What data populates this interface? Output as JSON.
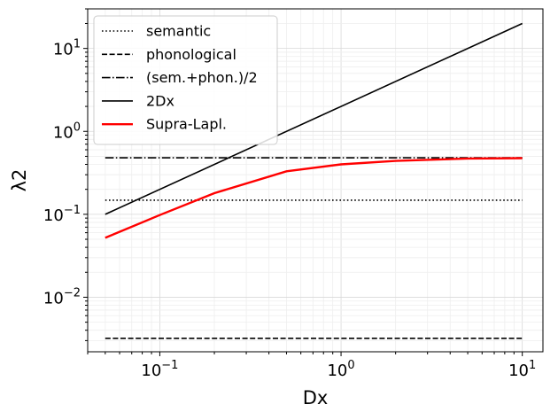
{
  "chart_data": {
    "type": "line",
    "xlabel": "Dx",
    "ylabel": "λ2",
    "xscale": "log",
    "yscale": "log",
    "xlim": [
      0.04,
      13
    ],
    "ylim": [
      0.0022,
      30
    ],
    "grid": "both-major-minor",
    "legend_placement": "upper-left",
    "x_ticks": [
      {
        "value": 0.1,
        "base": "10",
        "exp": "−1"
      },
      {
        "value": 1,
        "base": "10",
        "exp": "0"
      },
      {
        "value": 10,
        "base": "10",
        "exp": "1"
      }
    ],
    "y_ticks": [
      {
        "value": 0.01,
        "base": "10",
        "exp": "−2"
      },
      {
        "value": 0.1,
        "base": "10",
        "exp": "−1"
      },
      {
        "value": 1,
        "base": "10",
        "exp": "0"
      },
      {
        "value": 10,
        "base": "10",
        "exp": "1"
      }
    ],
    "series": [
      {
        "name": "semantic",
        "style": "dotted",
        "color": "#000000",
        "x": [
          0.05,
          10
        ],
        "y": [
          0.148,
          0.148
        ]
      },
      {
        "name": "phonological",
        "style": "dashed",
        "color": "#000000",
        "x": [
          0.05,
          10
        ],
        "y": [
          0.0032,
          0.0032
        ]
      },
      {
        "name": "(sem.+phon.)/2",
        "style": "dashdot",
        "color": "#000000",
        "x": [
          0.05,
          10
        ],
        "y": [
          0.48,
          0.48
        ]
      },
      {
        "name": "2Dx",
        "style": "solid",
        "color": "#000000",
        "x": [
          0.05,
          10
        ],
        "y": [
          0.1,
          20
        ]
      },
      {
        "name": "Supra-Lapl.",
        "style": "solid-thick",
        "color": "#ff0000",
        "x": [
          0.05,
          0.1,
          0.2,
          0.5,
          1,
          2,
          5,
          10
        ],
        "y": [
          0.052,
          0.098,
          0.18,
          0.33,
          0.4,
          0.44,
          0.47,
          0.475
        ]
      }
    ]
  }
}
